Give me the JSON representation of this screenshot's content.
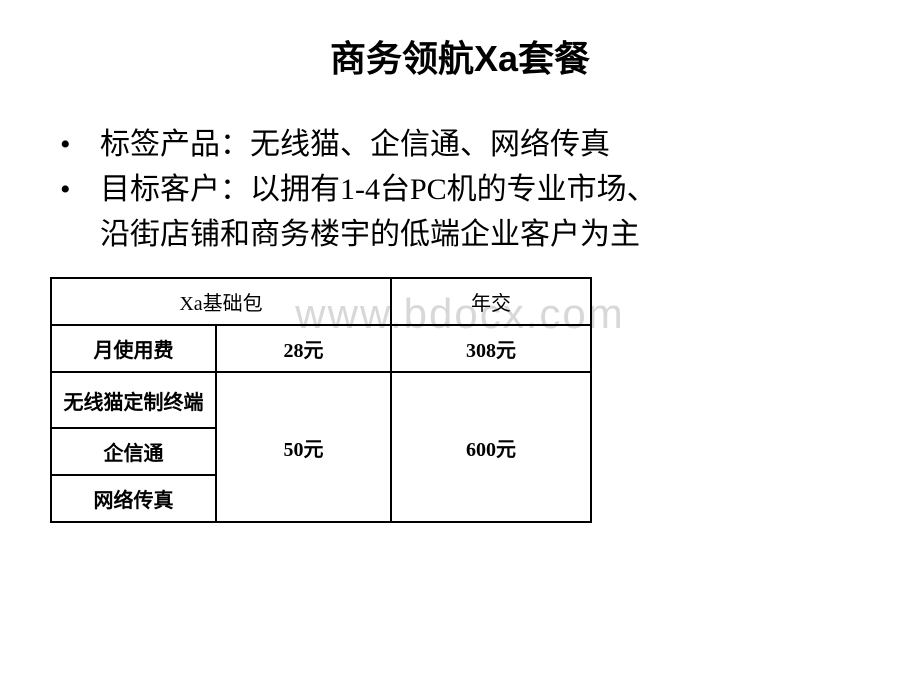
{
  "title": "商务领航Xa套餐",
  "bullets": {
    "item1": "标签产品：无线猫、企信通、网络传真",
    "item2_line1": "目标客户：以拥有1-4台PC机的专业市场、",
    "item2_line2": "沿街店铺和商务楼宇的低端企业客户为主"
  },
  "watermark": "www.bdocx.com",
  "table": {
    "header": {
      "col1": "Xa基础包",
      "col2": "年交"
    },
    "rows": {
      "monthly_fee_label": "月使用费",
      "monthly_fee_val1": "28元",
      "monthly_fee_val2": "308元",
      "wireless_modem_label": "无线猫定制终端",
      "qixintong_label": "企信通",
      "netfax_label": "网络传真",
      "merged_val1": "50元",
      "merged_val2": "600元"
    }
  },
  "styling": {
    "background_color": "#ffffff",
    "text_color": "#000000",
    "border_color": "#000000",
    "watermark_color": "#d8d8d8",
    "title_fontsize": 36,
    "bullet_fontsize": 30,
    "table_fontsize": 20
  }
}
